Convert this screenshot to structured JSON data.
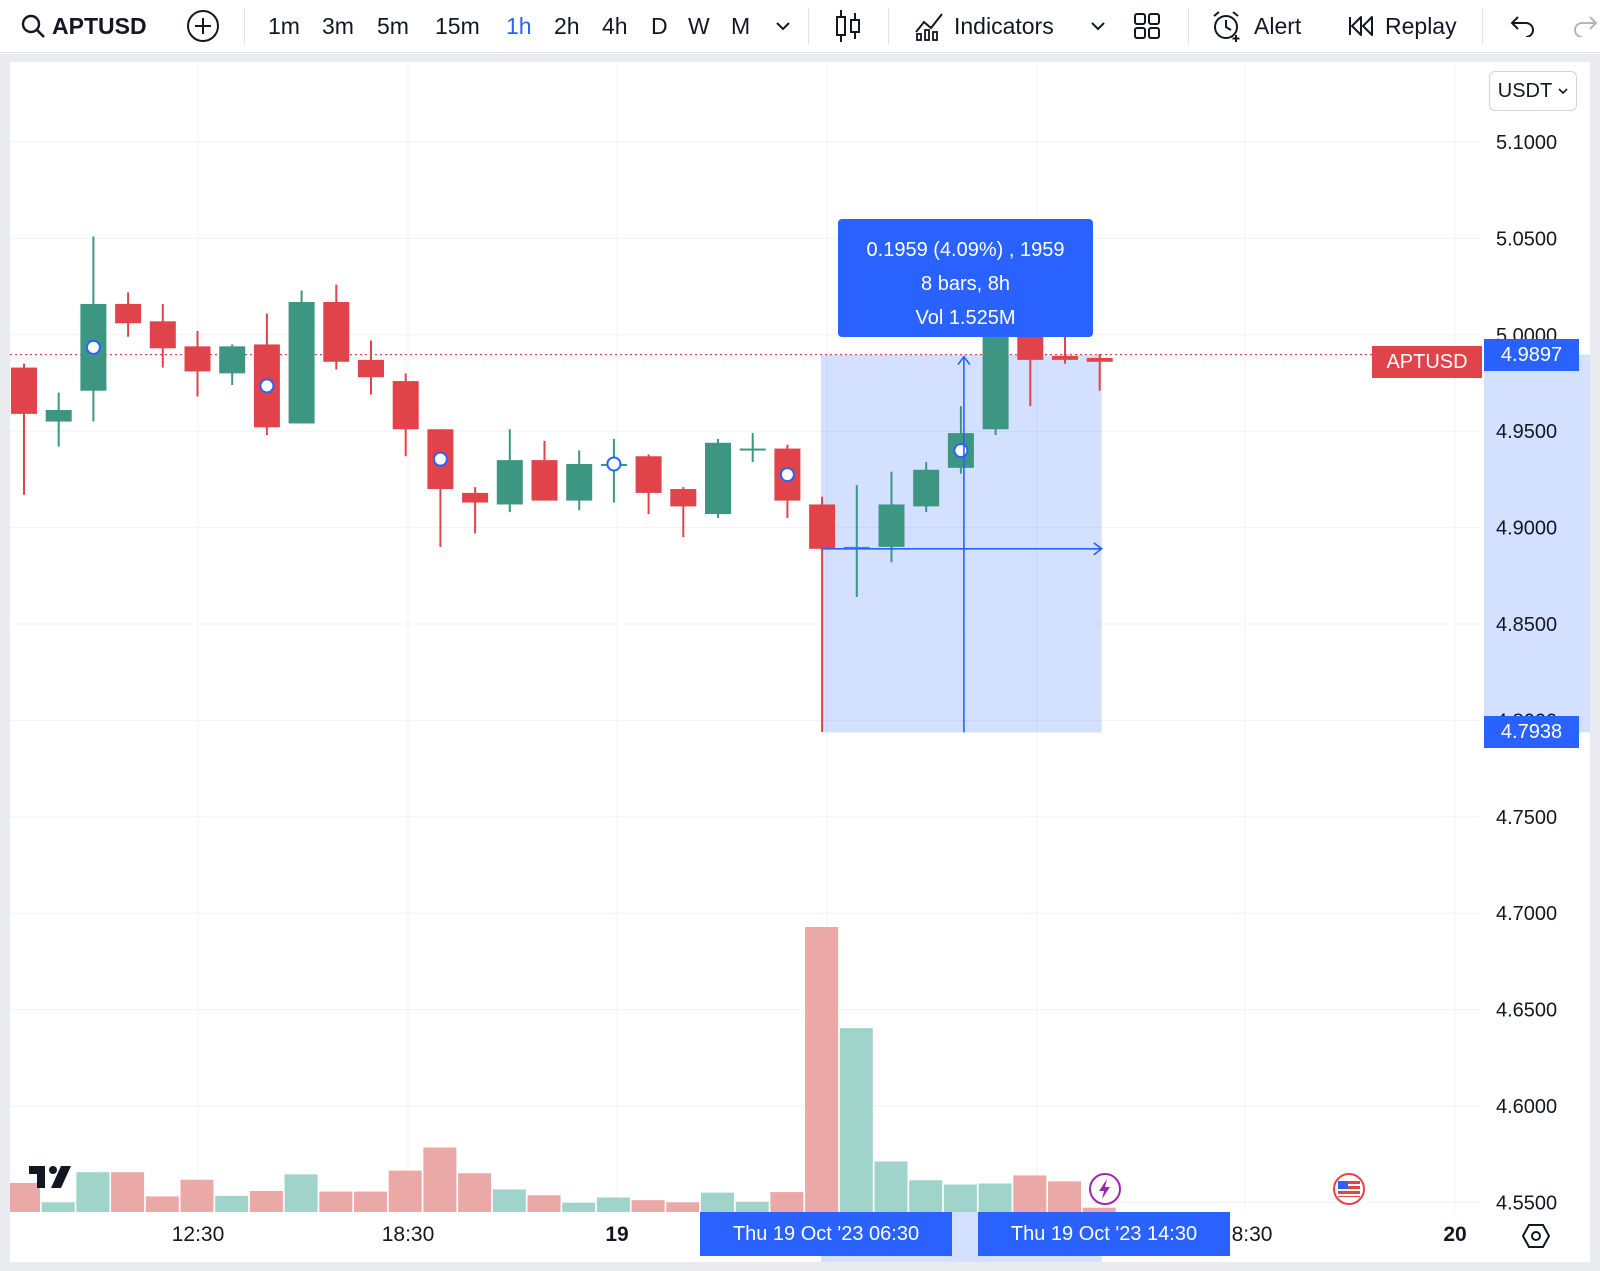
{
  "toolbar": {
    "symbol": "APTUSD",
    "intervals": [
      "1m",
      "3m",
      "5m",
      "15m",
      "1h",
      "2h",
      "4h",
      "D",
      "W",
      "M"
    ],
    "active_interval": "1h",
    "indicators_label": "Indicators",
    "alert_label": "Alert",
    "replay_label": "Replay"
  },
  "currency_select": "USDT",
  "chart_data": {
    "type": "candlestick",
    "symbol": "APTUSD",
    "interval": "1h",
    "y_axis": {
      "ticks": [
        "5.1000",
        "5.0500",
        "5.0000",
        "4.9500",
        "4.9000",
        "4.8500",
        "4.8000",
        "4.7500",
        "4.7000",
        "4.6500",
        "4.6000",
        "4.5500"
      ],
      "range": [
        4.535,
        5.14
      ]
    },
    "x_axis": {
      "ticks": [
        "12:30",
        "18:30",
        "19",
        "8:30",
        "20"
      ]
    },
    "candles": [
      {
        "o": 4.983,
        "h": 4.985,
        "l": 4.917,
        "c": 4.959
      },
      {
        "o": 4.955,
        "h": 4.97,
        "l": 4.942,
        "c": 4.961
      },
      {
        "o": 4.971,
        "h": 5.051,
        "l": 4.955,
        "c": 5.016
      },
      {
        "o": 5.016,
        "h": 5.022,
        "l": 4.999,
        "c": 5.006
      },
      {
        "o": 5.007,
        "h": 5.016,
        "l": 4.983,
        "c": 4.993
      },
      {
        "o": 4.994,
        "h": 5.002,
        "l": 4.968,
        "c": 4.981
      },
      {
        "o": 4.98,
        "h": 4.995,
        "l": 4.974,
        "c": 4.994
      },
      {
        "o": 4.995,
        "h": 5.011,
        "l": 4.948,
        "c": 4.952
      },
      {
        "o": 4.954,
        "h": 5.023,
        "l": 4.954,
        "c": 5.017
      },
      {
        "o": 5.017,
        "h": 5.026,
        "l": 4.982,
        "c": 4.986
      },
      {
        "o": 4.987,
        "h": 4.997,
        "l": 4.969,
        "c": 4.978
      },
      {
        "o": 4.976,
        "h": 4.98,
        "l": 4.937,
        "c": 4.951
      },
      {
        "o": 4.951,
        "h": 4.951,
        "l": 4.89,
        "c": 4.92
      },
      {
        "o": 4.918,
        "h": 4.921,
        "l": 4.897,
        "c": 4.913
      },
      {
        "o": 4.912,
        "h": 4.951,
        "l": 4.908,
        "c": 4.935
      },
      {
        "o": 4.935,
        "h": 4.945,
        "l": 4.914,
        "c": 4.914
      },
      {
        "o": 4.914,
        "h": 4.94,
        "l": 4.909,
        "c": 4.933
      },
      {
        "o": 4.933,
        "h": 4.946,
        "l": 4.913,
        "c": 4.933
      },
      {
        "o": 4.937,
        "h": 4.938,
        "l": 4.907,
        "c": 4.918
      },
      {
        "o": 4.92,
        "h": 4.921,
        "l": 4.895,
        "c": 4.911
      },
      {
        "o": 4.907,
        "h": 4.946,
        "l": 4.905,
        "c": 4.944
      },
      {
        "o": 4.94,
        "h": 4.949,
        "l": 4.934,
        "c": 4.941
      },
      {
        "o": 4.941,
        "h": 4.943,
        "l": 4.905,
        "c": 4.914
      },
      {
        "o": 4.912,
        "h": 4.916,
        "l": 4.794,
        "c": 4.889
      },
      {
        "o": 4.889,
        "h": 4.922,
        "l": 4.864,
        "c": 4.89
      },
      {
        "o": 4.89,
        "h": 4.929,
        "l": 4.882,
        "c": 4.912
      },
      {
        "o": 4.911,
        "h": 4.934,
        "l": 4.908,
        "c": 4.93
      },
      {
        "o": 4.931,
        "h": 4.963,
        "l": 4.928,
        "c": 4.949
      },
      {
        "o": 4.951,
        "h": 5.006,
        "l": 4.948,
        "c": 5.002
      },
      {
        "o": 5.001,
        "h": 5.006,
        "l": 4.963,
        "c": 4.987
      },
      {
        "o": 4.989,
        "h": 5.008,
        "l": 4.985,
        "c": 4.987
      },
      {
        "o": 4.988,
        "h": 4.99,
        "l": 4.971,
        "c": 4.986
      }
    ],
    "volume": [
      0.54,
      0.18,
      0.74,
      0.74,
      0.29,
      0.6,
      0.3,
      0.39,
      0.7,
      0.38,
      0.38,
      0.77,
      1.2,
      0.72,
      0.42,
      0.31,
      0.17,
      0.27,
      0.22,
      0.18,
      0.36,
      0.19,
      0.37,
      5.3,
      3.42,
      0.94,
      0.59,
      0.51,
      0.53,
      0.68,
      0.57,
      0.08
    ],
    "markers_on_candles": [
      2,
      7,
      12,
      17,
      22,
      27
    ],
    "last_price": {
      "symbol": "APTUSD",
      "value": "4.9897"
    },
    "measure": {
      "low_label": "4.7938",
      "high_label": "4.9897",
      "change": "0.1959 (4.09%) , 1959",
      "bars": "8 bars, 8h",
      "volume": "Vol 1.525M",
      "start_time": "Thu 19 Oct '23   06:30",
      "end_time": "Thu 19 Oct '23   14:30"
    },
    "colors": {
      "up": "#3d9681",
      "down": "#e0444a",
      "vol_up": "#a0d4cb",
      "vol_down": "#eaa8a6",
      "accent": "#2962ff"
    }
  }
}
